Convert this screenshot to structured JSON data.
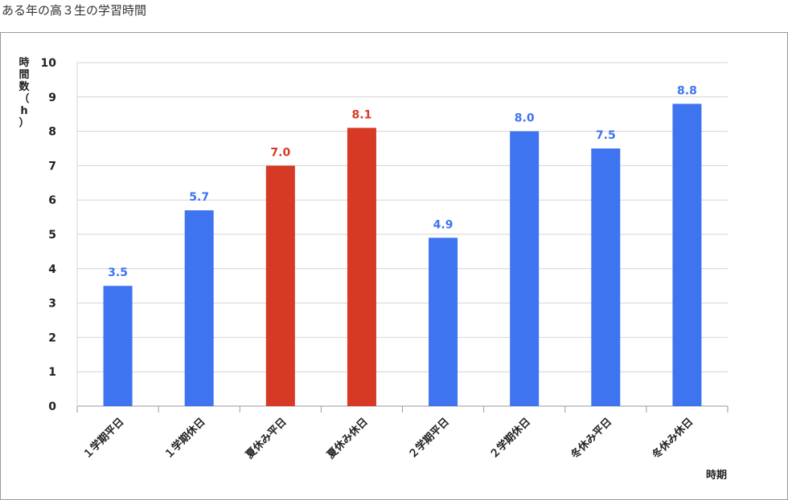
{
  "page": {
    "title": "ある年の高３生の学習時間"
  },
  "chart_data": {
    "type": "bar",
    "title": "ある年の高３生の学習時間",
    "xlabel": "時期",
    "ylabel": "時間数（h）",
    "ylim": [
      0,
      10
    ],
    "yticks": [
      0,
      1,
      2,
      3,
      4,
      5,
      6,
      7,
      8,
      9,
      10
    ],
    "categories": [
      "１学期平日",
      "１学期休日",
      "夏休み平日",
      "夏休み休日",
      "２学期平日",
      "２学期休日",
      "冬休み平日",
      "冬休み休日"
    ],
    "values": [
      3.5,
      5.7,
      7.0,
      8.1,
      4.9,
      8.0,
      7.5,
      8.8
    ],
    "value_labels": [
      "3.5",
      "5.7",
      "7.0",
      "8.1",
      "4.9",
      "8.0",
      "7.5",
      "8.8"
    ],
    "bar_colors": [
      "#3f74f0",
      "#3f74f0",
      "#d63a24",
      "#d63a24",
      "#3f74f0",
      "#3f74f0",
      "#3f74f0",
      "#3f74f0"
    ],
    "grid": true,
    "colors": {
      "blue": "#3f74f0",
      "red": "#d63a24",
      "grid": "#d4d4d4",
      "axis": "#9a9a9a"
    }
  }
}
